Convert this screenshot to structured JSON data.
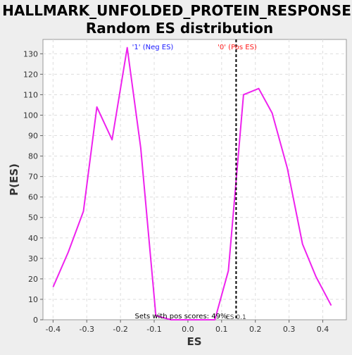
{
  "chart_data": {
    "type": "line",
    "title_line1": "HALLMARK_UNFOLDED_PROTEIN_RESPONSE:",
    "title_line2": "Random ES distribution",
    "xlabel": "ES",
    "ylabel": "P(ES)",
    "xlim": [
      -0.43,
      0.47
    ],
    "ylim": [
      0,
      137
    ],
    "x_ticks": [
      -0.4,
      -0.3,
      -0.2,
      -0.1,
      0.0,
      0.1,
      0.2,
      0.3,
      0.4
    ],
    "x_tick_labels": [
      "-0.4",
      "-0.3",
      "-0.2",
      "-0.1",
      "0.0",
      "0.1",
      "0.2",
      "0.3",
      "0.4"
    ],
    "y_ticks": [
      0,
      10,
      20,
      30,
      40,
      50,
      60,
      70,
      80,
      90,
      100,
      110,
      120,
      130
    ],
    "y_tick_labels": [
      "0",
      "10",
      "20",
      "30",
      "40",
      "50",
      "60",
      "70",
      "80",
      "90",
      "100",
      "110",
      "120",
      "130"
    ],
    "grid": true,
    "series": [
      {
        "color": "#ee22ee",
        "x": [
          -0.4,
          -0.355,
          -0.31,
          -0.27,
          -0.225,
          -0.18,
          -0.14,
          -0.095,
          -0.05,
          0.0,
          0.04,
          0.08,
          0.12,
          0.165,
          0.21,
          0.25,
          0.295,
          0.34,
          0.38,
          0.425
        ],
        "y": [
          16,
          33,
          53,
          104,
          88,
          133,
          84,
          2,
          0,
          0,
          0,
          0,
          24,
          110,
          113,
          101,
          74,
          37,
          21,
          7
        ]
      }
    ],
    "marker": {
      "x": 0.143,
      "style": "dashed",
      "color": "#000000",
      "label": "ES 0.1"
    },
    "annotations": {
      "neg_label": "'1' (Neg ES)",
      "neg_color": "#1a1aff",
      "pos_label": "'0' (Pos ES)",
      "pos_color": "#ff1a1a",
      "pos_scores_text": "Sets with pos scores: 49%"
    },
    "background_color": "#eeeeee",
    "plot_background": "#ffffff"
  }
}
